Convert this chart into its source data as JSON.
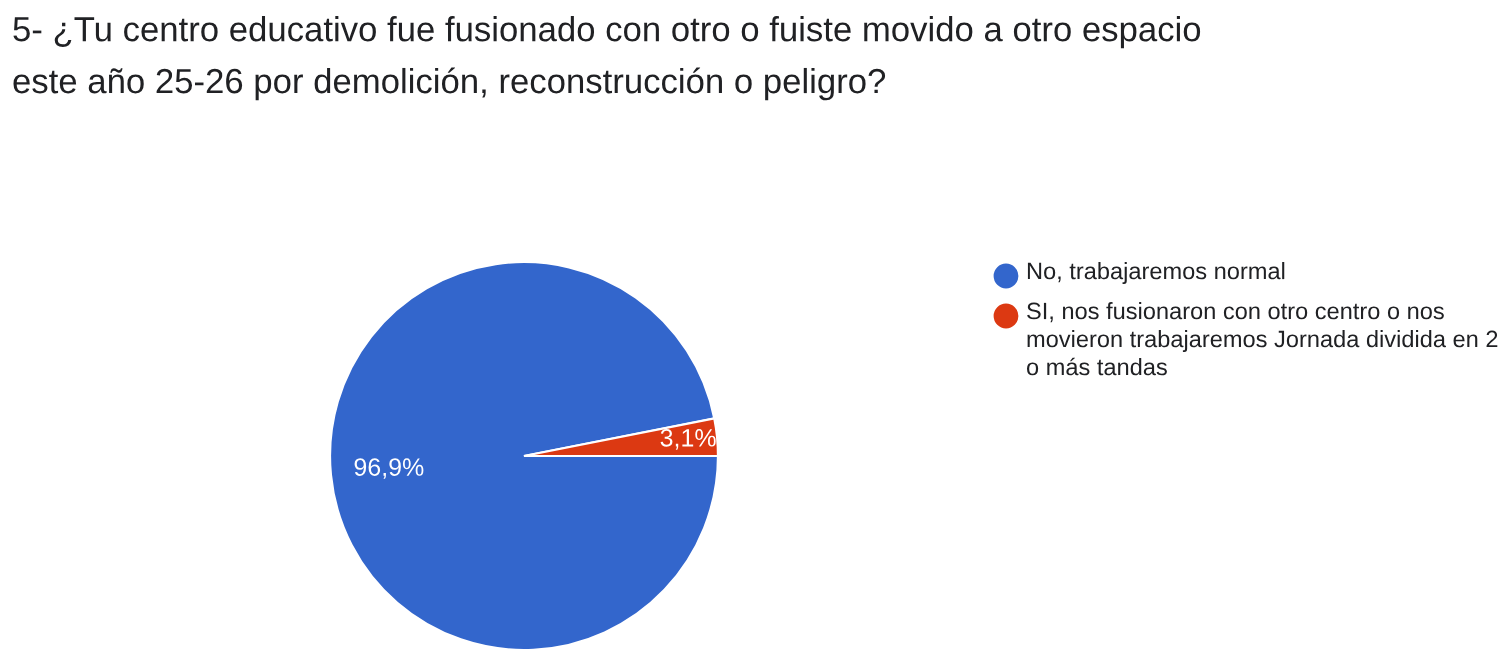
{
  "chart_data": {
    "type": "pie",
    "title": "5- ¿Tu centro educativo fue fusionado con otro o fuiste movido a otro espacio\neste año 25-26 por demolición, reconstrucción o peligro?",
    "categories": [
      "No, trabajaremos normal",
      "SI, nos fusionaron con otro centro o nos movieron trabajaremos Jornada dividida en 2 o más tandas"
    ],
    "values": [
      96.9,
      3.1
    ],
    "colors": [
      "#3366cc",
      "#dc3912"
    ],
    "value_labels": [
      "96,9%",
      "3,1%"
    ],
    "legend": "right"
  }
}
